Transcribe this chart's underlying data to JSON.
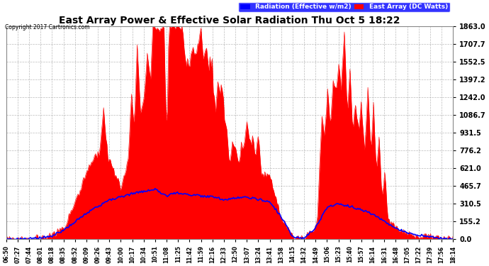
{
  "title": "East Array Power & Effective Solar Radiation Thu Oct 5 18:22",
  "copyright": "Copyright 2017 Cartronics.com",
  "legend_labels": [
    "Radiation (Effective w/m2)",
    "East Array (DC Watts)"
  ],
  "legend_bg_color": "blue",
  "legend_text_color": "#ffffff",
  "ylabel_right_ticks": [
    0.0,
    155.2,
    310.5,
    465.7,
    621.0,
    776.2,
    931.5,
    1086.7,
    1242.0,
    1397.2,
    1552.5,
    1707.7,
    1863.0
  ],
  "ylabel_right_labels": [
    "0.0",
    "155.2",
    "310.5",
    "465.7",
    "621.0",
    "776.2",
    "931.5",
    "1086.7",
    "1242.0",
    "1397.2",
    "1552.5",
    "1707.7",
    "1863.0"
  ],
  "ylim": [
    0,
    1863.0
  ],
  "bg_color": "#ffffff",
  "plot_bg_color": "#ffffff",
  "grid_color": "#aaaaaa",
  "title_color": "#000000",
  "tick_color": "#000000",
  "copyright_color": "#000000",
  "x_tick_labels": [
    "06:50",
    "07:27",
    "07:44",
    "08:01",
    "08:18",
    "08:35",
    "08:52",
    "09:09",
    "09:26",
    "09:43",
    "10:00",
    "10:17",
    "10:34",
    "10:51",
    "11:08",
    "11:25",
    "11:42",
    "11:59",
    "12:16",
    "12:33",
    "12:50",
    "13:07",
    "13:24",
    "13:41",
    "13:58",
    "14:15",
    "14:32",
    "14:49",
    "15:06",
    "15:23",
    "15:40",
    "15:57",
    "16:14",
    "16:31",
    "16:48",
    "17:05",
    "17:22",
    "17:39",
    "17:56",
    "18:14"
  ],
  "radiation_color": "#0000ff",
  "power_color": "#ff0000",
  "power_fill_color": "#ff0000"
}
